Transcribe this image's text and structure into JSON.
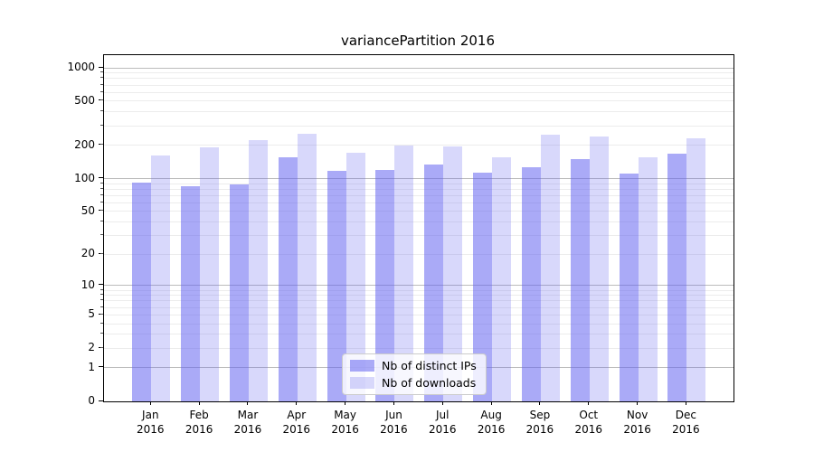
{
  "chart_data": {
    "type": "bar",
    "title": "variancePartition 2016",
    "x_tick_months": [
      "Jan",
      "Feb",
      "Mar",
      "Apr",
      "May",
      "Jun",
      "Jul",
      "Aug",
      "Sep",
      "Oct",
      "Nov",
      "Dec"
    ],
    "x_tick_year": "2016",
    "series": [
      {
        "name": "Nb of distinct IPs",
        "color": "rgba(100,100,240,0.55)",
        "values": [
          92,
          85,
          88,
          155,
          118,
          120,
          133,
          114,
          126,
          151,
          110,
          168
        ]
      },
      {
        "name": "Nb of downloads",
        "color": "rgba(100,100,240,0.25)",
        "values": [
          162,
          193,
          222,
          252,
          170,
          200,
          195,
          157,
          250,
          240,
          157,
          230
        ]
      }
    ],
    "yscale": "log(value+1)",
    "y_tick_labels": [
      "1000",
      "500",
      "200",
      "100",
      "50",
      "20",
      "10",
      "5",
      "2",
      "1",
      "0"
    ],
    "y_ticks": [
      1000,
      500,
      200,
      100,
      50,
      20,
      10,
      5,
      2,
      1,
      0
    ],
    "ylim": [
      0,
      1300
    ],
    "grid": "horizontal; major lines at 1,10,100,1000; minor lines at 2-9 multiples of each decade",
    "legend_position": "lower center"
  },
  "colors": {
    "background": "#ffffff",
    "axis": "#000000",
    "grid_major": "#bbbbbb",
    "grid_minor": "#ececec",
    "bar_distinct_ips": "rgba(100,100,240,0.55)",
    "bar_downloads": "rgba(100,100,240,0.25)",
    "legend_border": "#cccccc"
  }
}
